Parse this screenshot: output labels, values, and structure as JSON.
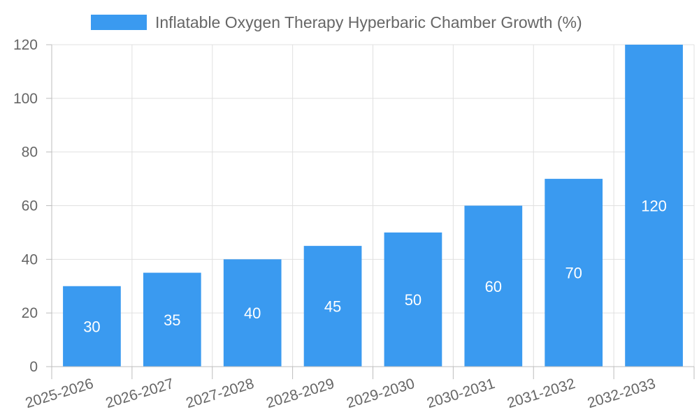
{
  "chart_data": {
    "type": "bar",
    "title": "",
    "xlabel": "",
    "ylabel": "",
    "legend_position": "top-center",
    "grid": true,
    "categories": [
      "2025-2026",
      "2026-2027",
      "2027-2028",
      "2028-2029",
      "2029-2030",
      "2030-2031",
      "2031-2032",
      "2032-2033"
    ],
    "series": [
      {
        "name": "Inflatable Oxygen Therapy Hyperbaric Chamber Growth (%)",
        "color": "#3a9af0",
        "values": [
          30,
          35,
          40,
          45,
          50,
          60,
          70,
          120
        ]
      }
    ],
    "ylim": [
      0,
      120
    ],
    "yticks": [
      0,
      20,
      40,
      60,
      80,
      100,
      120
    ],
    "data_labels": true
  }
}
